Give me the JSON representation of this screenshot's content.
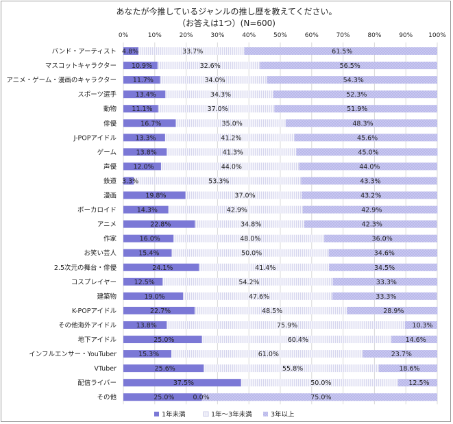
{
  "chart_data": {
    "type": "bar",
    "orientation": "horizontal",
    "stacking": "percent",
    "title": "あなたが今推しているジャンルの推し歴を教えてください。",
    "subtitle": "（お答えは1つ）(N=600)",
    "x_ticks": [
      "0%",
      "10%",
      "20%",
      "30%",
      "40%",
      "50%",
      "60%",
      "70%",
      "80%",
      "90%",
      "100%"
    ],
    "xlim": [
      0,
      100
    ],
    "grid": true,
    "legend_position": "bottom",
    "categories": [
      "バンド・アーティスト",
      "マスコットキャラクター",
      "アニメ・ゲーム・漫画のキャラクター",
      "スポーツ選手",
      "動物",
      "俳優",
      "J-POPアイドル",
      "ゲーム",
      "声優",
      "鉄道",
      "漫画",
      "ボーカロイド",
      "アニメ",
      "作家",
      "お笑い芸人",
      "2.5次元の舞台・俳優",
      "コスプレイヤー",
      "建築物",
      "K-POPアイドル",
      "その他海外アイドル",
      "地下アイドル",
      "インフルエンサー・YouTuber",
      "VTuber",
      "配信ライバー",
      "その他"
    ],
    "series": [
      {
        "name": "1年未満",
        "color": "#7b78d6",
        "values": [
          4.8,
          10.9,
          11.7,
          13.4,
          11.1,
          16.7,
          13.3,
          13.8,
          12.0,
          3.3,
          19.8,
          14.3,
          22.8,
          16.0,
          15.4,
          24.1,
          12.5,
          19.0,
          22.7,
          13.8,
          25.0,
          15.3,
          25.6,
          37.5,
          25.0
        ],
        "labels": [
          "4.8%",
          "10.9%",
          "11.7%",
          "13.4%",
          "11.1%",
          "16.7%",
          "13.3%",
          "13.8%",
          "12.0%",
          "3.3%",
          "19.8%",
          "14.3%",
          "22.8%",
          "16.0%",
          "15.4%",
          "24.1%",
          "12.5%",
          "19.0%",
          "22.7%",
          "13.8%",
          "25.0%",
          "15.3%",
          "25.6%",
          "37.5%",
          "25.0%"
        ]
      },
      {
        "name": "1年～3年未満",
        "color": "#e9e9f6",
        "values": [
          33.7,
          32.6,
          34.0,
          34.3,
          37.0,
          35.0,
          41.2,
          41.3,
          44.0,
          53.3,
          37.0,
          42.9,
          34.8,
          48.0,
          50.0,
          41.4,
          54.2,
          47.6,
          48.5,
          75.9,
          60.4,
          61.0,
          55.8,
          50.0,
          0.0
        ],
        "labels": [
          "33.7%",
          "32.6%",
          "34.0%",
          "34.3%",
          "37.0%",
          "35.0%",
          "41.2%",
          "41.3%",
          "44.0%",
          "53.3%",
          "37.0%",
          "42.9%",
          "34.8%",
          "48.0%",
          "50.0%",
          "41.4%",
          "54.2%",
          "47.6%",
          "48.5%",
          "75.9%",
          "60.4%",
          "61.0%",
          "55.8%",
          "50.0%",
          "0.0%"
        ]
      },
      {
        "name": "3年以上",
        "color": "#c4c3ee",
        "values": [
          61.5,
          56.5,
          54.3,
          52.3,
          51.9,
          48.3,
          45.6,
          45.0,
          44.0,
          43.3,
          43.2,
          42.9,
          42.3,
          36.0,
          34.6,
          34.5,
          33.3,
          33.3,
          28.9,
          10.3,
          14.6,
          23.7,
          18.6,
          12.5,
          75.0
        ],
        "labels": [
          "61.5%",
          "56.5%",
          "54.3%",
          "52.3%",
          "51.9%",
          "48.3%",
          "45.6%",
          "45.0%",
          "44.0%",
          "43.3%",
          "43.2%",
          "42.9%",
          "42.3%",
          "36.0%",
          "34.6%",
          "34.5%",
          "33.3%",
          "33.3%",
          "28.9%",
          "10.3%",
          "14.6%",
          "23.7%",
          "18.6%",
          "12.5%",
          "75.0%"
        ]
      }
    ]
  }
}
